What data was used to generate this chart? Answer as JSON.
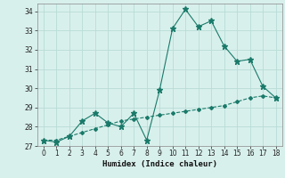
{
  "xlabel": "Humidex (Indice chaleur)",
  "x": [
    0,
    1,
    2,
    3,
    4,
    5,
    6,
    7,
    8,
    9,
    10,
    11,
    12,
    13,
    14,
    15,
    16,
    17,
    18
  ],
  "line1_y": [
    27.3,
    27.2,
    27.5,
    28.3,
    28.7,
    28.2,
    28.0,
    28.7,
    27.3,
    29.9,
    33.1,
    34.1,
    33.2,
    33.5,
    32.2,
    31.4,
    31.5,
    30.1,
    29.5
  ],
  "line2_y": [
    27.3,
    27.3,
    27.5,
    27.7,
    27.9,
    28.1,
    28.3,
    28.4,
    28.5,
    28.6,
    28.7,
    28.8,
    28.9,
    29.0,
    29.1,
    29.3,
    29.5,
    29.6,
    29.5
  ],
  "line_color": "#1a7a6a",
  "bg_color": "#d8f0ec",
  "grid_color": "#b8dcd6",
  "ylim": [
    27,
    34.4
  ],
  "xlim": [
    -0.5,
    18.5
  ],
  "yticks": [
    27,
    28,
    29,
    30,
    31,
    32,
    33,
    34
  ],
  "xticks": [
    0,
    1,
    2,
    3,
    4,
    5,
    6,
    7,
    8,
    9,
    10,
    11,
    12,
    13,
    14,
    15,
    16,
    17,
    18
  ]
}
